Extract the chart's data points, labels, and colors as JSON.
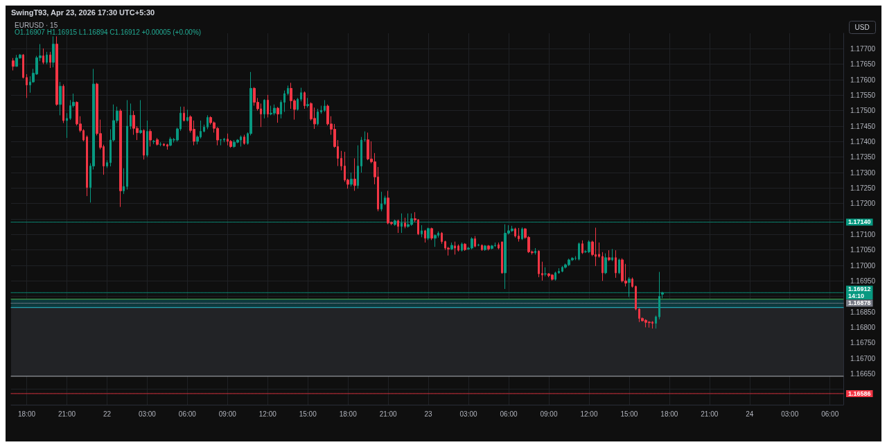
{
  "chart_data": {
    "type": "candlestick",
    "title": "EURUSD · 15",
    "subtitle": "O1.16907 H1.16915 L1.16894 C1.16912 +0.00005 (+0.00%)",
    "ylabel": "USD",
    "annotations": [
      "SwingT93, Apr 23, 2026 17:30 UTC+5:30"
    ],
    "x": [
      "2026-04-21T17:00",
      "2026-04-21T17:15",
      "2026-04-21T17:30",
      "2026-04-21T17:45",
      "2026-04-21T18:00",
      "2026-04-21T18:15",
      "2026-04-21T18:30",
      "2026-04-21T18:45",
      "2026-04-21T19:00",
      "2026-04-21T19:15",
      "2026-04-21T19:30",
      "2026-04-21T19:45",
      "2026-04-21T20:00",
      "2026-04-21T20:15",
      "2026-04-21T20:30",
      "2026-04-21T20:45",
      "2026-04-21T21:00",
      "2026-04-21T21:15",
      "2026-04-21T21:30",
      "2026-04-21T21:45",
      "2026-04-21T22:00",
      "2026-04-21T22:15",
      "2026-04-21T22:30",
      "2026-04-21T22:45",
      "2026-04-21T23:00",
      "2026-04-21T23:15",
      "2026-04-21T23:30",
      "2026-04-21T23:45",
      "2026-04-22T00:00",
      "2026-04-22T00:15",
      "2026-04-22T00:30",
      "2026-04-22T00:45",
      "2026-04-22T01:00",
      "2026-04-22T01:15",
      "2026-04-22T01:30",
      "2026-04-22T01:45",
      "2026-04-22T02:00",
      "2026-04-22T02:15",
      "2026-04-22T02:30",
      "2026-04-22T02:45",
      "2026-04-22T03:00",
      "2026-04-22T03:15",
      "2026-04-22T03:30",
      "2026-04-22T03:45",
      "2026-04-22T04:00",
      "2026-04-22T04:15",
      "2026-04-22T04:30",
      "2026-04-22T04:45",
      "2026-04-22T05:00",
      "2026-04-22T05:15",
      "2026-04-22T05:30",
      "2026-04-22T05:45",
      "2026-04-22T06:00",
      "2026-04-22T06:15",
      "2026-04-22T06:30",
      "2026-04-22T06:45",
      "2026-04-22T07:00",
      "2026-04-22T07:15",
      "2026-04-22T07:30",
      "2026-04-22T07:45",
      "2026-04-22T08:00",
      "2026-04-22T08:15",
      "2026-04-22T08:30",
      "2026-04-22T08:45",
      "2026-04-22T09:00",
      "2026-04-22T09:15",
      "2026-04-22T09:30",
      "2026-04-22T09:45",
      "2026-04-22T10:00",
      "2026-04-22T10:15",
      "2026-04-22T10:30",
      "2026-04-22T10:45",
      "2026-04-22T11:00",
      "2026-04-22T11:15",
      "2026-04-22T11:30",
      "2026-04-22T11:45",
      "2026-04-22T12:00",
      "2026-04-22T12:15",
      "2026-04-22T12:30",
      "2026-04-22T12:45",
      "2026-04-22T13:00",
      "2026-04-22T13:15",
      "2026-04-22T13:30",
      "2026-04-22T13:45",
      "2026-04-22T14:00",
      "2026-04-22T14:15",
      "2026-04-22T14:30",
      "2026-04-22T14:45",
      "2026-04-22T15:00",
      "2026-04-22T15:15",
      "2026-04-22T15:30",
      "2026-04-22T15:45",
      "2026-04-22T16:00",
      "2026-04-22T16:15",
      "2026-04-22T16:30",
      "2026-04-22T16:45",
      "2026-04-22T17:00",
      "2026-04-22T17:15",
      "2026-04-22T17:30",
      "2026-04-22T17:45",
      "2026-04-22T18:00",
      "2026-04-22T18:15",
      "2026-04-22T18:30",
      "2026-04-22T18:45",
      "2026-04-22T19:00",
      "2026-04-22T19:15",
      "2026-04-22T19:30",
      "2026-04-22T19:45",
      "2026-04-22T20:00",
      "2026-04-22T20:15",
      "2026-04-22T20:30",
      "2026-04-22T20:45",
      "2026-04-22T21:00",
      "2026-04-22T21:15",
      "2026-04-22T21:30",
      "2026-04-22T21:45",
      "2026-04-22T22:00",
      "2026-04-22T22:15",
      "2026-04-22T22:30",
      "2026-04-22T22:45",
      "2026-04-22T23:00",
      "2026-04-22T23:15",
      "2026-04-22T23:30",
      "2026-04-22T23:45",
      "2026-04-23T00:00",
      "2026-04-23T00:15",
      "2026-04-23T00:30",
      "2026-04-23T00:45",
      "2026-04-23T01:00",
      "2026-04-23T01:15",
      "2026-04-23T01:30",
      "2026-04-23T01:45",
      "2026-04-23T02:00",
      "2026-04-23T02:15",
      "2026-04-23T02:30",
      "2026-04-23T02:45",
      "2026-04-23T03:00",
      "2026-04-23T03:15",
      "2026-04-23T03:30",
      "2026-04-23T03:45",
      "2026-04-23T04:00",
      "2026-04-23T04:15",
      "2026-04-23T04:30",
      "2026-04-23T04:45",
      "2026-04-23T05:00",
      "2026-04-23T05:15",
      "2026-04-23T05:30",
      "2026-04-23T05:45",
      "2026-04-23T06:00",
      "2026-04-23T06:15",
      "2026-04-23T06:30",
      "2026-04-23T06:45",
      "2026-04-23T07:00",
      "2026-04-23T07:15",
      "2026-04-23T07:30",
      "2026-04-23T07:45",
      "2026-04-23T08:00",
      "2026-04-23T08:15",
      "2026-04-23T08:30",
      "2026-04-23T08:45",
      "2026-04-23T09:00",
      "2026-04-23T09:15",
      "2026-04-23T09:30",
      "2026-04-23T09:45",
      "2026-04-23T10:00",
      "2026-04-23T10:15",
      "2026-04-23T10:30",
      "2026-04-23T10:45",
      "2026-04-23T11:00",
      "2026-04-23T11:15",
      "2026-04-23T11:30",
      "2026-04-23T11:45",
      "2026-04-23T12:00",
      "2026-04-23T12:15",
      "2026-04-23T12:30",
      "2026-04-23T12:45",
      "2026-04-23T13:00",
      "2026-04-23T13:15",
      "2026-04-23T13:30",
      "2026-04-23T13:45",
      "2026-04-23T14:00",
      "2026-04-23T14:15",
      "2026-04-23T14:30",
      "2026-04-23T14:45",
      "2026-04-23T15:00",
      "2026-04-23T15:15",
      "2026-04-23T15:30",
      "2026-04-23T15:45",
      "2026-04-23T16:00",
      "2026-04-23T16:15",
      "2026-04-23T16:30",
      "2026-04-23T16:45",
      "2026-04-23T17:00",
      "2026-04-23T17:15",
      "2026-04-23T17:30"
    ],
    "ohlc": [
      [
        1.17661,
        1.1767,
        1.1763,
        1.17643
      ],
      [
        1.17643,
        1.1768,
        1.17642,
        1.1767
      ],
      [
        1.1767,
        1.17683,
        1.17668,
        1.1768
      ],
      [
        1.1768,
        1.17683,
        1.17604,
        1.17607
      ],
      [
        1.17607,
        1.17618,
        1.17541,
        1.17583
      ],
      [
        1.17583,
        1.17611,
        1.17558,
        1.17593
      ],
      [
        1.17593,
        1.17635,
        1.1759,
        1.17621
      ],
      [
        1.17618,
        1.17677,
        1.17616,
        1.17671
      ],
      [
        1.17671,
        1.17715,
        1.1766,
        1.17677
      ],
      [
        1.17677,
        1.17701,
        1.1765,
        1.17656
      ],
      [
        1.17656,
        1.1769,
        1.1765,
        1.1768
      ],
      [
        1.1768,
        1.1769,
        1.17638,
        1.17656
      ],
      [
        1.17656,
        1.1774,
        1.1764,
        1.17715
      ],
      [
        1.17715,
        1.1774,
        1.17516,
        1.1752
      ],
      [
        1.1752,
        1.17593,
        1.17485,
        1.17579
      ],
      [
        1.17579,
        1.17585,
        1.1746,
        1.17468
      ],
      [
        1.17468,
        1.17492,
        1.17412,
        1.17475
      ],
      [
        1.17475,
        1.17534,
        1.1747,
        1.17516
      ],
      [
        1.17516,
        1.17555,
        1.1751,
        1.17527
      ],
      [
        1.17527,
        1.1753,
        1.17452,
        1.17457
      ],
      [
        1.17457,
        1.17482,
        1.1743,
        1.17436
      ],
      [
        1.17436,
        1.1744,
        1.17401,
        1.17405
      ],
      [
        1.17415,
        1.1742,
        1.17224,
        1.17252
      ],
      [
        1.17252,
        1.1733,
        1.17203,
        1.17321
      ],
      [
        1.17321,
        1.17635,
        1.1731,
        1.17586
      ],
      [
        1.17586,
        1.1759,
        1.1742,
        1.17426
      ],
      [
        1.17426,
        1.17471,
        1.17375,
        1.17381
      ],
      [
        1.17384,
        1.1739,
        1.17293,
        1.17321
      ],
      [
        1.17321,
        1.1734,
        1.17315,
        1.17332
      ],
      [
        1.17332,
        1.1744,
        1.1732,
        1.17405
      ],
      [
        1.17405,
        1.1752,
        1.174,
        1.17468
      ],
      [
        1.17468,
        1.17513,
        1.1746,
        1.17499
      ],
      [
        1.17499,
        1.17505,
        1.17189,
        1.17241
      ],
      [
        1.17241,
        1.17314,
        1.17231,
        1.17255
      ],
      [
        1.17255,
        1.17534,
        1.17245,
        1.1745
      ],
      [
        1.1745,
        1.17523,
        1.1744,
        1.17485
      ],
      [
        1.17485,
        1.17499,
        1.17422,
        1.17443
      ],
      [
        1.17443,
        1.1745,
        1.17405,
        1.17429
      ],
      [
        1.17429,
        1.17534,
        1.17425,
        1.17436
      ],
      [
        1.17436,
        1.1744,
        1.17342,
        1.17356
      ],
      [
        1.17356,
        1.17468,
        1.1735,
        1.17433
      ],
      [
        1.17433,
        1.1744,
        1.17384,
        1.17405
      ],
      [
        1.174,
        1.17405,
        1.17392,
        1.17401
      ],
      [
        1.17406,
        1.17412,
        1.17387,
        1.17391
      ],
      [
        1.17391,
        1.17398,
        1.17385,
        1.17392
      ],
      [
        1.17392,
        1.17395,
        1.17385,
        1.17388
      ],
      [
        1.1739,
        1.17393,
        1.17374,
        1.17385
      ],
      [
        1.17388,
        1.17415,
        1.17385,
        1.17408
      ],
      [
        1.17405,
        1.17412,
        1.17397,
        1.17407
      ],
      [
        1.17405,
        1.17445,
        1.174,
        1.17441
      ],
      [
        1.17441,
        1.17513,
        1.17435,
        1.17492
      ],
      [
        1.17492,
        1.17513,
        1.17465,
        1.17468
      ],
      [
        1.17468,
        1.17503,
        1.17465,
        1.17478
      ],
      [
        1.1748,
        1.17485,
        1.17429,
        1.17436
      ],
      [
        1.1744,
        1.17468,
        1.17388,
        1.17401
      ],
      [
        1.17401,
        1.1742,
        1.17391,
        1.17415
      ],
      [
        1.17415,
        1.17468,
        1.1741,
        1.17433
      ],
      [
        1.17433,
        1.17455,
        1.1743,
        1.17447
      ],
      [
        1.17447,
        1.17485,
        1.1744,
        1.17478
      ],
      [
        1.17478,
        1.17482,
        1.17455,
        1.17461
      ],
      [
        1.17461,
        1.17465,
        1.17429,
        1.17443
      ],
      [
        1.17443,
        1.17447,
        1.17388,
        1.17405
      ],
      [
        1.17405,
        1.17408,
        1.17388,
        1.17406
      ],
      [
        1.17405,
        1.17412,
        1.17398,
        1.17408
      ],
      [
        1.17408,
        1.17426,
        1.17388,
        1.17401
      ],
      [
        1.17401,
        1.17405,
        1.1738,
        1.17384
      ],
      [
        1.17384,
        1.17405,
        1.1738,
        1.17398
      ],
      [
        1.17398,
        1.17408,
        1.17395,
        1.17405
      ],
      [
        1.17405,
        1.1742,
        1.17384,
        1.17415
      ],
      [
        1.17415,
        1.17422,
        1.1739,
        1.17394
      ],
      [
        1.17394,
        1.1743,
        1.1739,
        1.17426
      ],
      [
        1.17426,
        1.17625,
        1.1742,
        1.17572
      ],
      [
        1.17572,
        1.17576,
        1.17516,
        1.17527
      ],
      [
        1.17527,
        1.17541,
        1.175,
        1.17506
      ],
      [
        1.17506,
        1.17523,
        1.17447,
        1.17489
      ],
      [
        1.17489,
        1.17537,
        1.17475,
        1.17534
      ],
      [
        1.17534,
        1.17551,
        1.17478,
        1.17489
      ],
      [
        1.17489,
        1.17516,
        1.17485,
        1.17492
      ],
      [
        1.17492,
        1.1752,
        1.17485,
        1.17508
      ],
      [
        1.17508,
        1.17512,
        1.17461,
        1.17489
      ],
      [
        1.17489,
        1.17534,
        1.17475,
        1.17527
      ],
      [
        1.17527,
        1.17565,
        1.17496,
        1.17555
      ],
      [
        1.17555,
        1.17581,
        1.1755,
        1.17572
      ],
      [
        1.17572,
        1.1759,
        1.17506,
        1.17532
      ],
      [
        1.17532,
        1.17537,
        1.17471,
        1.17504
      ],
      [
        1.17504,
        1.17541,
        1.175,
        1.17537
      ],
      [
        1.17537,
        1.17574,
        1.1753,
        1.17558
      ],
      [
        1.17558,
        1.17562,
        1.17506,
        1.17516
      ],
      [
        1.17516,
        1.17541,
        1.1751,
        1.1752
      ],
      [
        1.17523,
        1.17527,
        1.17468,
        1.17473
      ],
      [
        1.17475,
        1.1751,
        1.17441,
        1.17457
      ],
      [
        1.17457,
        1.17506,
        1.17452,
        1.17496
      ],
      [
        1.17496,
        1.17516,
        1.1749,
        1.17501
      ],
      [
        1.17501,
        1.17534,
        1.17496,
        1.17515
      ],
      [
        1.17515,
        1.1752,
        1.17452,
        1.17457
      ],
      [
        1.17457,
        1.17482,
        1.17422,
        1.1744
      ],
      [
        1.1744,
        1.17457,
        1.1738,
        1.17384
      ],
      [
        1.17384,
        1.17405,
        1.17321,
        1.17346
      ],
      [
        1.17346,
        1.1737,
        1.17307,
        1.17321
      ],
      [
        1.17321,
        1.17367,
        1.1727,
        1.17276
      ],
      [
        1.17276,
        1.1728,
        1.17248,
        1.17262
      ],
      [
        1.17262,
        1.173,
        1.17255,
        1.17279
      ],
      [
        1.17279,
        1.17346,
        1.17241,
        1.17258
      ],
      [
        1.17258,
        1.17388,
        1.17248,
        1.17321
      ],
      [
        1.17321,
        1.17415,
        1.173,
        1.17405
      ],
      [
        1.17406,
        1.17433,
        1.174,
        1.17406
      ],
      [
        1.17406,
        1.17429,
        1.1734,
        1.17344
      ],
      [
        1.17344,
        1.17401,
        1.1733,
        1.17335
      ],
      [
        1.17335,
        1.17363,
        1.17262,
        1.17286
      ],
      [
        1.17286,
        1.17318,
        1.17175,
        1.17182
      ],
      [
        1.17182,
        1.17238,
        1.17175,
        1.17199
      ],
      [
        1.17199,
        1.17225,
        1.17195,
        1.17218
      ],
      [
        1.17218,
        1.17241,
        1.17133,
        1.17137
      ],
      [
        1.17139,
        1.17142,
        1.1713,
        1.17135
      ],
      [
        1.17132,
        1.17148,
        1.17128,
        1.17144
      ],
      [
        1.17144,
        1.17148,
        1.17105,
        1.17126
      ],
      [
        1.17126,
        1.17168,
        1.17105,
        1.17137
      ],
      [
        1.17137,
        1.17154,
        1.1712,
        1.17126
      ],
      [
        1.17126,
        1.17168,
        1.17122,
        1.17132
      ],
      [
        1.17132,
        1.17168,
        1.17128,
        1.17151
      ],
      [
        1.17151,
        1.17172,
        1.1714,
        1.17147
      ],
      [
        1.17147,
        1.1715,
        1.17098,
        1.17102
      ],
      [
        1.17102,
        1.1713,
        1.17091,
        1.17112
      ],
      [
        1.17112,
        1.17115,
        1.17074,
        1.17088
      ],
      [
        1.17088,
        1.17122,
        1.17082,
        1.17119
      ],
      [
        1.17119,
        1.17122,
        1.17082,
        1.17088
      ],
      [
        1.17088,
        1.171,
        1.1706,
        1.17097
      ],
      [
        1.17097,
        1.1711,
        1.1709,
        1.17104
      ],
      [
        1.17104,
        1.17108,
        1.1707,
        1.17077
      ],
      [
        1.17077,
        1.1708,
        1.1705,
        1.17056
      ],
      [
        1.17056,
        1.1706,
        1.17032,
        1.17053
      ],
      [
        1.17053,
        1.17074,
        1.1705,
        1.17065
      ],
      [
        1.17063,
        1.17077,
        1.17035,
        1.17056
      ],
      [
        1.17063,
        1.17068,
        1.17045,
        1.17049
      ],
      [
        1.17049,
        1.17074,
        1.17045,
        1.17069
      ],
      [
        1.17069,
        1.17072,
        1.17047,
        1.17051
      ],
      [
        1.17053,
        1.1706,
        1.1705,
        1.17056
      ],
      [
        1.17056,
        1.17091,
        1.17052,
        1.17086
      ],
      [
        1.17086,
        1.17095,
        1.17058,
        1.17062
      ],
      [
        1.17065,
        1.1707,
        1.17062,
        1.17066
      ],
      [
        1.17065,
        1.17068,
        1.17047,
        1.17051
      ],
      [
        1.17051,
        1.17066,
        1.17047,
        1.17063
      ],
      [
        1.17063,
        1.17066,
        1.17048,
        1.17053
      ],
      [
        1.17055,
        1.17066,
        1.17052,
        1.17063
      ],
      [
        1.17064,
        1.17074,
        1.1706,
        1.17065
      ],
      [
        1.17067,
        1.17074,
        1.17052,
        1.17056
      ],
      [
        1.17076,
        1.17077,
        1.16973,
        1.16976
      ],
      [
        1.16976,
        1.17133,
        1.16924,
        1.17104
      ],
      [
        1.17104,
        1.1713,
        1.171,
        1.17112
      ],
      [
        1.17112,
        1.17128,
        1.17108,
        1.17118
      ],
      [
        1.17118,
        1.17122,
        1.1709,
        1.17095
      ],
      [
        1.17095,
        1.17121,
        1.17077,
        1.17086
      ],
      [
        1.17086,
        1.17123,
        1.17082,
        1.17118
      ],
      [
        1.17118,
        1.17121,
        1.17086,
        1.1709
      ],
      [
        1.17091,
        1.17095,
        1.1704,
        1.17044
      ],
      [
        1.17044,
        1.17048,
        1.17035,
        1.17041
      ],
      [
        1.17041,
        1.17056,
        1.17035,
        1.17046
      ],
      [
        1.17046,
        1.17049,
        1.16962,
        1.16973
      ],
      [
        1.16974,
        1.17012,
        1.16951,
        1.16969
      ],
      [
        1.16972,
        1.16994,
        1.16965,
        1.16973
      ],
      [
        1.16973,
        1.16975,
        1.16962,
        1.16967
      ],
      [
        1.16969,
        1.16972,
        1.16951,
        1.16955
      ],
      [
        1.16955,
        1.1698,
        1.16951,
        1.16976
      ],
      [
        1.16976,
        1.16991,
        1.16973,
        1.16981
      ],
      [
        1.16981,
        1.16998,
        1.16978,
        1.16994
      ],
      [
        1.16994,
        1.17006,
        1.1699,
        1.17002
      ],
      [
        1.17002,
        1.17022,
        1.16998,
        1.17018
      ],
      [
        1.17018,
        1.17027,
        1.17014,
        1.17023
      ],
      [
        1.17023,
        1.1703,
        1.17017,
        1.17023
      ],
      [
        1.1702,
        1.17074,
        1.17016,
        1.1707
      ],
      [
        1.1707,
        1.17081,
        1.17037,
        1.17041
      ],
      [
        1.17044,
        1.17049,
        1.1704,
        1.17045
      ],
      [
        1.17044,
        1.17081,
        1.1704,
        1.17076
      ],
      [
        1.17076,
        1.1708,
        1.1703,
        1.17035
      ],
      [
        1.17035,
        1.17122,
        1.16998,
        1.17029
      ],
      [
        1.17036,
        1.17074,
        1.17025,
        1.17029
      ],
      [
        1.17029,
        1.17043,
        1.1695,
        1.16976
      ],
      [
        1.16976,
        1.17039,
        1.16972,
        1.17025
      ],
      [
        1.17025,
        1.17049,
        1.17014,
        1.17018
      ],
      [
        1.17018,
        1.17053,
        1.17014,
        1.17025
      ],
      [
        1.17025,
        1.17049,
        1.1696,
        1.16976
      ],
      [
        1.16976,
        1.17022,
        1.16972,
        1.17018
      ],
      [
        1.17018,
        1.17023,
        1.16945,
        1.1695
      ],
      [
        1.1695,
        1.17005,
        1.16932,
        1.16943
      ],
      [
        1.16945,
        1.16962,
        1.16898,
        1.16956
      ],
      [
        1.16956,
        1.16961,
        1.16928,
        1.16932
      ],
      [
        1.16932,
        1.16935,
        1.16855,
        1.16859
      ],
      [
        1.16859,
        1.16862,
        1.16817,
        1.16829
      ],
      [
        1.16829,
        1.16832,
        1.16819,
        1.16821
      ],
      [
        1.16823,
        1.16826,
        1.168,
        1.16816
      ],
      [
        1.16817,
        1.1682,
        1.16799,
        1.16815
      ],
      [
        1.16817,
        1.1682,
        1.16796,
        1.16813
      ],
      [
        1.16813,
        1.16838,
        1.16796,
        1.16834
      ],
      [
        1.16834,
        1.16979,
        1.16826,
        1.169
      ],
      [
        1.16907,
        1.16915,
        1.16894,
        1.16912
      ]
    ],
    "xlim": [
      "2026-04-21T16:50",
      "2026-04-24T07:00"
    ],
    "xticks": [
      {
        "value": "2026-04-21T18:00",
        "label": "18:00"
      },
      {
        "value": "2026-04-21T21:00",
        "label": "21:00"
      },
      {
        "value": "2026-04-22T00:00",
        "label": "22"
      },
      {
        "value": "2026-04-22T03:00",
        "label": "03:00"
      },
      {
        "value": "2026-04-22T06:00",
        "label": "06:00"
      },
      {
        "value": "2026-04-22T09:00",
        "label": "09:00"
      },
      {
        "value": "2026-04-22T12:00",
        "label": "12:00"
      },
      {
        "value": "2026-04-22T15:00",
        "label": "15:00"
      },
      {
        "value": "2026-04-22T18:00",
        "label": "18:00"
      },
      {
        "value": "2026-04-22T21:00",
        "label": "21:00"
      },
      {
        "value": "2026-04-23T00:00",
        "label": "23"
      },
      {
        "value": "2026-04-23T03:00",
        "label": "03:00"
      },
      {
        "value": "2026-04-23T06:00",
        "label": "06:00"
      },
      {
        "value": "2026-04-23T09:00",
        "label": "09:00"
      },
      {
        "value": "2026-04-23T12:00",
        "label": "12:00"
      },
      {
        "value": "2026-04-23T15:00",
        "label": "15:00"
      },
      {
        "value": "2026-04-23T18:00",
        "label": "18:00"
      },
      {
        "value": "2026-04-23T21:00",
        "label": "21:00"
      },
      {
        "value": "2026-04-24T00:00",
        "label": "24"
      },
      {
        "value": "2026-04-24T03:00",
        "label": "03:00"
      },
      {
        "value": "2026-04-24T06:00",
        "label": "06:00"
      }
    ],
    "ylim": [
      1.1655,
      1.1775
    ],
    "yticks": [
      {
        "value": 1.166,
        "label": null
      },
      {
        "value": 1.1665,
        "label": "1.16650"
      },
      {
        "value": 1.167,
        "label": "1.16700"
      },
      {
        "value": 1.1675,
        "label": "1.16750"
      },
      {
        "value": 1.168,
        "label": "1.16800"
      },
      {
        "value": 1.1685,
        "label": "1.16850"
      },
      {
        "value": 1.169,
        "label": null
      },
      {
        "value": 1.1695,
        "label": "1.16950"
      },
      {
        "value": 1.17,
        "label": "1.17000"
      },
      {
        "value": 1.1705,
        "label": "1.17050"
      },
      {
        "value": 1.171,
        "label": "1.17100"
      },
      {
        "value": 1.1715,
        "label": null
      },
      {
        "value": 1.172,
        "label": "1.17200"
      },
      {
        "value": 1.1725,
        "label": "1.17250"
      },
      {
        "value": 1.173,
        "label": "1.17300"
      },
      {
        "value": 1.1735,
        "label": "1.17350"
      },
      {
        "value": 1.174,
        "label": "1.17400"
      },
      {
        "value": 1.1745,
        "label": "1.17450"
      },
      {
        "value": 1.175,
        "label": "1.17500"
      },
      {
        "value": 1.1755,
        "label": "1.17550"
      },
      {
        "value": 1.176,
        "label": "1.17600"
      },
      {
        "value": 1.1765,
        "label": "1.17650"
      },
      {
        "value": 1.177,
        "label": "1.17700"
      }
    ],
    "grid": true,
    "bands": [
      {
        "axis": "y",
        "from": 1.16864,
        "to": 1.16891,
        "color": "#0e3a3e"
      },
      {
        "axis": "y",
        "from": 1.16642,
        "to": 1.16864,
        "color": "#222326"
      }
    ],
    "ref_lines": [
      {
        "axis": "y",
        "value": 1.16891,
        "color": "#4caf50",
        "line_style": "solid"
      },
      {
        "axis": "y",
        "value": 1.16864,
        "color": "#26c6da",
        "line_style": "solid"
      },
      {
        "axis": "y",
        "value": 1.16642,
        "color": "#b2b5be",
        "line_style": "solid"
      },
      {
        "axis": "y",
        "value": 1.16912,
        "label": "1.16912\n14:10",
        "color": "#089981",
        "line_style": "dotted"
      },
      {
        "axis": "y",
        "value": 1.1714,
        "label": "1.17140",
        "color": "#089981",
        "line_style": "dotted"
      },
      {
        "axis": "y",
        "value": 1.16878,
        "label": "1.16878",
        "color": "#787b86",
        "line_style": "dotted"
      },
      {
        "axis": "y",
        "value": 1.16586,
        "label": "1.16586",
        "color": "#f23645",
        "line_style": "dotted"
      }
    ]
  }
}
